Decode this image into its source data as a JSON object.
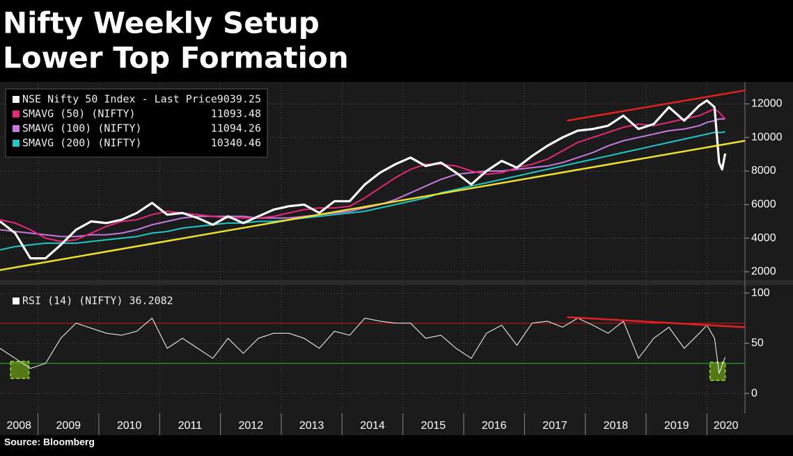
{
  "title": "Nifty Weekly Setup",
  "subtitle": "Lower Top Formation",
  "source": "Source: Bloomberg",
  "chart_data": [
    {
      "type": "line",
      "x": [
        2008.375,
        2008.625,
        2008.875,
        2009.125,
        2009.375,
        2009.625,
        2009.875,
        2010.125,
        2010.375,
        2010.625,
        2010.875,
        2011.125,
        2011.375,
        2011.625,
        2011.875,
        2012.125,
        2012.375,
        2012.625,
        2012.875,
        2013.125,
        2013.375,
        2013.625,
        2013.875,
        2014.125,
        2014.375,
        2014.625,
        2014.875,
        2015.125,
        2015.375,
        2015.625,
        2015.875,
        2016.125,
        2016.375,
        2016.625,
        2016.875,
        2017.125,
        2017.375,
        2017.625,
        2017.875,
        2018.125,
        2018.375,
        2018.625,
        2018.875,
        2019.125,
        2019.375,
        2019.625,
        2019.875,
        2020.0,
        2020.125,
        2020.2,
        2020.25,
        2020.3
      ],
      "series": [
        {
          "name": "NSE Nifty 50 Index - Last Price",
          "color": "#ffffff",
          "values": [
            5000,
            4300,
            2800,
            2800,
            3600,
            4500,
            5000,
            4900,
            5100,
            5500,
            6100,
            5400,
            5500,
            5200,
            4800,
            5300,
            4900,
            5300,
            5700,
            5900,
            6000,
            5500,
            6200,
            6200,
            7200,
            7900,
            8400,
            8800,
            8300,
            8500,
            7900,
            7200,
            8000,
            8600,
            8200,
            8900,
            9500,
            10000,
            10400,
            10500,
            10700,
            11300,
            10500,
            10800,
            11800,
            11000,
            11900,
            12200,
            11800,
            8500,
            8100,
            9039.25
          ]
        },
        {
          "name": "SMAVG (50) (NIFTY)",
          "color": "#e8287a",
          "values": [
            5100,
            4900,
            4500,
            4000,
            3800,
            3900,
            4300,
            4700,
            5000,
            5100,
            5400,
            5600,
            5500,
            5400,
            5300,
            5200,
            5200,
            5200,
            5300,
            5500,
            5700,
            5800,
            5800,
            5900,
            6400,
            7000,
            7600,
            8100,
            8400,
            8400,
            8300,
            8000,
            7800,
            7900,
            8200,
            8400,
            8700,
            9200,
            9700,
            10000,
            10300,
            10600,
            10800,
            10700,
            10900,
            11100,
            11300,
            11500,
            11700,
            11500,
            11300,
            11093.48
          ]
        },
        {
          "name": "SMAVG (100) (NIFTY)",
          "color": "#c77be0",
          "values": [
            4500,
            4400,
            4300,
            4200,
            4100,
            4100,
            4200,
            4200,
            4300,
            4500,
            4800,
            5000,
            5200,
            5300,
            5300,
            5300,
            5300,
            5200,
            5200,
            5200,
            5300,
            5400,
            5500,
            5600,
            5800,
            6000,
            6300,
            6700,
            7100,
            7500,
            7800,
            7900,
            8000,
            8000,
            8100,
            8200,
            8300,
            8500,
            8800,
            9100,
            9500,
            9800,
            10000,
            10200,
            10400,
            10500,
            10700,
            10900,
            11000,
            11100,
            11100,
            11094.26
          ]
        },
        {
          "name": "SMAVG (200) (NIFTY)",
          "color": "#21c8c8",
          "values": [
            3300,
            3500,
            3600,
            3700,
            3700,
            3700,
            3800,
            3900,
            4000,
            4100,
            4300,
            4400,
            4600,
            4700,
            4800,
            4900,
            4900,
            5000,
            5000,
            5100,
            5200,
            5300,
            5400,
            5500,
            5600,
            5800,
            6000,
            6200,
            6400,
            6700,
            6900,
            7100,
            7300,
            7500,
            7700,
            7900,
            8100,
            8300,
            8500,
            8700,
            8900,
            9100,
            9300,
            9500,
            9700,
            9900,
            10100,
            10200,
            10300,
            10300,
            10300,
            10340.46
          ]
        }
      ],
      "trendlines": [
        {
          "color": "#e82020",
          "x": [
            2017.7,
            2020.625
          ],
          "values": [
            11000,
            12800
          ]
        },
        {
          "color": "#f0e030",
          "x": [
            2008.375,
            2020.625
          ],
          "values": [
            2100,
            9800
          ]
        }
      ],
      "xlim": [
        2008.375,
        2020.625
      ],
      "ylim": [
        1500,
        13300
      ],
      "yticks": [
        2000,
        4000,
        6000,
        8000,
        10000,
        12000
      ],
      "grid": true
    },
    {
      "type": "line",
      "x": [
        2008.375,
        2008.625,
        2008.875,
        2009.125,
        2009.375,
        2009.625,
        2009.875,
        2010.125,
        2010.375,
        2010.625,
        2010.875,
        2011.125,
        2011.375,
        2011.625,
        2011.875,
        2012.125,
        2012.375,
        2012.625,
        2012.875,
        2013.125,
        2013.375,
        2013.625,
        2013.875,
        2014.125,
        2014.375,
        2014.625,
        2014.875,
        2015.125,
        2015.375,
        2015.625,
        2015.875,
        2016.125,
        2016.375,
        2016.625,
        2016.875,
        2017.125,
        2017.375,
        2017.625,
        2017.875,
        2018.125,
        2018.375,
        2018.625,
        2018.875,
        2019.125,
        2019.375,
        2019.625,
        2019.875,
        2020.0,
        2020.125,
        2020.2,
        2020.25,
        2020.3
      ],
      "series": [
        {
          "name": "RSI (14) (NIFTY)",
          "color": "#ffffff",
          "values": [
            45,
            35,
            25,
            30,
            55,
            70,
            65,
            60,
            58,
            62,
            75,
            45,
            55,
            45,
            35,
            55,
            40,
            55,
            60,
            60,
            55,
            45,
            62,
            58,
            75,
            72,
            70,
            70,
            55,
            58,
            45,
            35,
            60,
            68,
            48,
            70,
            72,
            66,
            75,
            68,
            60,
            72,
            35,
            55,
            66,
            45,
            60,
            68,
            55,
            20,
            28,
            36.2082
          ]
        }
      ],
      "levels": [
        {
          "value": 70,
          "color": "#c01818"
        },
        {
          "value": 30,
          "color": "#2e9e2e"
        }
      ],
      "trendlines": [
        {
          "color": "#e82020",
          "x": [
            2017.7,
            2020.625
          ],
          "values": [
            76,
            66
          ]
        }
      ],
      "highlights": [
        {
          "color": "#6a9a1a",
          "x": [
            2008.55,
            2008.85
          ],
          "values": [
            15,
            32
          ]
        },
        {
          "color": "#6a9a1a",
          "x": [
            2020.05,
            2020.3
          ],
          "values": [
            13,
            31
          ]
        }
      ],
      "xlim": [
        2008.375,
        2020.625
      ],
      "ylim": [
        -20,
        108
      ],
      "yticks": [
        0,
        50,
        100
      ],
      "xticks": [
        2008,
        2009,
        2010,
        2011,
        2012,
        2013,
        2014,
        2015,
        2016,
        2017,
        2018,
        2019,
        2020
      ],
      "grid": true
    }
  ]
}
